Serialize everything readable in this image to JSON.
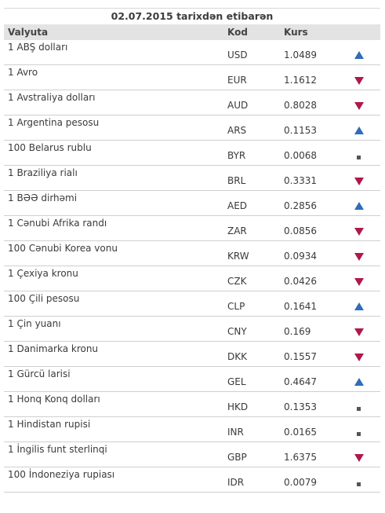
{
  "table": {
    "caption": "02.07.2015 tarixdən etibarən",
    "headers": {
      "name": "Valyuta",
      "code": "Kod",
      "rate": "Kurs"
    },
    "rows": [
      {
        "name": "1 ABŞ dolları",
        "code": "USD",
        "rate": "1.0489",
        "trend": "up"
      },
      {
        "name": "1 Avro",
        "code": "EUR",
        "rate": "1.1612",
        "trend": "down"
      },
      {
        "name": "1 Avstraliya dolları",
        "code": "AUD",
        "rate": "0.8028",
        "trend": "down"
      },
      {
        "name": "1 Argentina pesosu",
        "code": "ARS",
        "rate": "0.1153",
        "trend": "up"
      },
      {
        "name": "100 Belarus rublu",
        "code": "BYR",
        "rate": "0.0068",
        "trend": "flat"
      },
      {
        "name": "1 Braziliya rialı",
        "code": "BRL",
        "rate": "0.3331",
        "trend": "down"
      },
      {
        "name": "1 BƏƏ dirhəmi",
        "code": "AED",
        "rate": "0.2856",
        "trend": "up"
      },
      {
        "name": "1 Cənubi Afrika randı",
        "code": "ZAR",
        "rate": "0.0856",
        "trend": "down"
      },
      {
        "name": "100 Cənubi Korea vonu",
        "code": "KRW",
        "rate": "0.0934",
        "trend": "down"
      },
      {
        "name": "1 Çexiya kronu",
        "code": "CZK",
        "rate": "0.0426",
        "trend": "down"
      },
      {
        "name": "100 Çili pesosu",
        "code": "CLP",
        "rate": "0.1641",
        "trend": "up"
      },
      {
        "name": "1 Çin yuanı",
        "code": "CNY",
        "rate": "0.169",
        "trend": "down"
      },
      {
        "name": "1 Danimarka kronu",
        "code": "DKK",
        "rate": "0.1557",
        "trend": "down"
      },
      {
        "name": "1 Gürcü larisi",
        "code": "GEL",
        "rate": "0.4647",
        "trend": "up"
      },
      {
        "name": "1 Honq Konq dolları",
        "code": "HKD",
        "rate": "0.1353",
        "trend": "flat"
      },
      {
        "name": "1 Hindistan rupisi",
        "code": "INR",
        "rate": "0.0165",
        "trend": "flat"
      },
      {
        "name": "1 İngilis funt sterlinqi",
        "code": "GBP",
        "rate": "1.6375",
        "trend": "down"
      },
      {
        "name": "100 İndoneziya rupiası",
        "code": "IDR",
        "rate": "0.0079",
        "trend": "flat"
      }
    ]
  },
  "colors": {
    "trend_up": "#2f6db5",
    "trend_down": "#b0184b",
    "trend_flat": "#555555",
    "header_bg": "#e3e3e3"
  },
  "icons": {
    "up": "arrow-up-icon",
    "down": "arrow-down-icon",
    "flat": "no-change-icon"
  }
}
